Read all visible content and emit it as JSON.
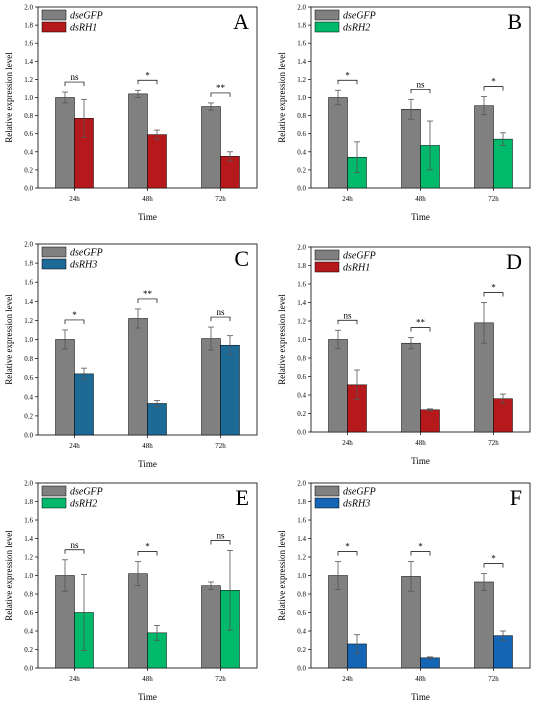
{
  "colors": {
    "control": "#808080",
    "dsRH1": "#B5191B",
    "dsRH2": "#00B96B",
    "dsRH3": "#1D6A96",
    "dsRH3_blue": "#1565B5",
    "error_bar": "#555555"
  },
  "chart_data": [
    {
      "panel": "A",
      "type": "bar",
      "categories": [
        "24h",
        "48h",
        "72h"
      ],
      "xlabel": "Time",
      "ylabel": "Relative expression level",
      "ylim": [
        0,
        2.0
      ],
      "yticks": [
        "0.0",
        "0.2",
        "0.4",
        "0.6",
        "0.8",
        "1.0",
        "1.2",
        "1.4",
        "1.6",
        "1.8",
        "2.0"
      ],
      "legend_position": "top-left",
      "series": [
        {
          "name": "dseGFP",
          "color_key": "control",
          "values": [
            1.0,
            1.04,
            0.9
          ],
          "errors": [
            0.06,
            0.04,
            0.04
          ]
        },
        {
          "name": "dsRH1",
          "color_key": "dsRH1",
          "values": [
            0.77,
            0.59,
            0.35
          ],
          "errors": [
            0.21,
            0.05,
            0.05
          ]
        }
      ],
      "significance": [
        "ns",
        "*",
        "**"
      ]
    },
    {
      "panel": "B",
      "type": "bar",
      "categories": [
        "24h",
        "48h",
        "72h"
      ],
      "xlabel": "Time",
      "ylabel": "Relative expression level",
      "ylim": [
        0,
        2.0
      ],
      "yticks": [
        "0.0",
        "0.2",
        "0.4",
        "0.6",
        "0.8",
        "1.0",
        "1.2",
        "1.4",
        "1.6",
        "1.8",
        "2.0"
      ],
      "legend_position": "top-left",
      "series": [
        {
          "name": "dseGFP",
          "color_key": "control",
          "values": [
            1.0,
            0.87,
            0.91
          ],
          "errors": [
            0.08,
            0.11,
            0.1
          ]
        },
        {
          "name": "dsRH2",
          "color_key": "dsRH2",
          "values": [
            0.34,
            0.47,
            0.54
          ],
          "errors": [
            0.17,
            0.27,
            0.07
          ]
        }
      ],
      "significance": [
        "*",
        "ns",
        "*"
      ]
    },
    {
      "panel": "C",
      "type": "bar",
      "categories": [
        "24h",
        "48h",
        "72h"
      ],
      "xlabel": "Time",
      "ylabel": "Relative expression level",
      "ylim": [
        0,
        2.0
      ],
      "yticks": [
        "0.0",
        "0.2",
        "0.4",
        "0.6",
        "0.8",
        "1.0",
        "1.2",
        "1.4",
        "1.6",
        "1.8",
        "2.0"
      ],
      "legend_position": "top-left",
      "series": [
        {
          "name": "dseGFP",
          "color_key": "control",
          "values": [
            1.0,
            1.22,
            1.01
          ],
          "errors": [
            0.1,
            0.1,
            0.12
          ]
        },
        {
          "name": "dsRH3",
          "color_key": "dsRH3",
          "values": [
            0.64,
            0.33,
            0.94
          ],
          "errors": [
            0.06,
            0.03,
            0.1
          ]
        }
      ],
      "significance": [
        "*",
        "**",
        "ns"
      ]
    },
    {
      "panel": "D",
      "type": "bar",
      "categories": [
        "24h",
        "48h",
        "72h"
      ],
      "xlabel": "Time",
      "ylabel": "Relative expression level",
      "ylim": [
        0,
        2.0
      ],
      "yticks": [
        "0.0",
        "0.2",
        "0.4",
        "0.6",
        "0.8",
        "1.0",
        "1.2",
        "1.4",
        "1.6",
        "1.8",
        "2.0"
      ],
      "legend_position": "top-left",
      "series": [
        {
          "name": "dseGFP",
          "color_key": "control",
          "values": [
            1.0,
            0.96,
            1.18
          ],
          "errors": [
            0.1,
            0.06,
            0.22
          ]
        },
        {
          "name": "dsRH1",
          "color_key": "dsRH1",
          "values": [
            0.51,
            0.24,
            0.36
          ],
          "errors": [
            0.16,
            0.01,
            0.05
          ]
        }
      ],
      "significance": [
        "ns",
        "**",
        "*"
      ]
    },
    {
      "panel": "E",
      "type": "bar",
      "categories": [
        "24h",
        "48h",
        "72h"
      ],
      "xlabel": "Time",
      "ylabel": "Relative expression level",
      "ylim": [
        0,
        2.0
      ],
      "yticks": [
        "0.0",
        "0.2",
        "0.4",
        "0.6",
        "0.8",
        "1.0",
        "1.2",
        "1.4",
        "1.6",
        "1.8",
        "2.0"
      ],
      "legend_position": "top-left",
      "series": [
        {
          "name": "dseGFP",
          "color_key": "control",
          "values": [
            1.0,
            1.02,
            0.89
          ],
          "errors": [
            0.17,
            0.13,
            0.04
          ]
        },
        {
          "name": "dsRH2",
          "color_key": "dsRH2",
          "values": [
            0.6,
            0.38,
            0.84
          ],
          "errors": [
            0.41,
            0.08,
            0.43
          ]
        }
      ],
      "significance": [
        "ns",
        "*",
        "ns"
      ]
    },
    {
      "panel": "F",
      "type": "bar",
      "categories": [
        "24h",
        "48h",
        "72h"
      ],
      "xlabel": "Time",
      "ylabel": "Relative expression level",
      "ylim": [
        0,
        2.0
      ],
      "yticks": [
        "0.0",
        "0.2",
        "0.4",
        "0.6",
        "0.8",
        "1.0",
        "1.2",
        "1.4",
        "1.6",
        "1.8",
        "2.0"
      ],
      "legend_position": "top-left",
      "series": [
        {
          "name": "dseGFP",
          "color_key": "control",
          "values": [
            1.0,
            0.99,
            0.93
          ],
          "errors": [
            0.15,
            0.16,
            0.09
          ]
        },
        {
          "name": "dsRH3",
          "color_key": "dsRH3_blue",
          "values": [
            0.26,
            0.11,
            0.35
          ],
          "errors": [
            0.1,
            0.01,
            0.05
          ]
        }
      ],
      "significance": [
        "*",
        "*",
        "*"
      ]
    }
  ]
}
